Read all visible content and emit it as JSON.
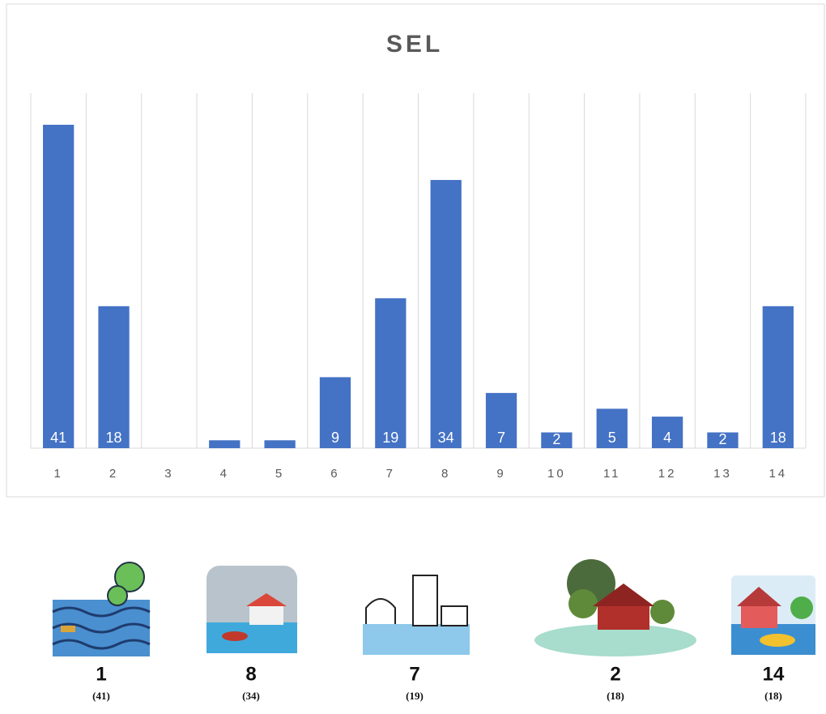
{
  "chart_data": {
    "type": "bar",
    "title": "SEL",
    "categories": [
      "1",
      "2",
      "3",
      "4",
      "5",
      "6",
      "7",
      "8",
      "9",
      "10",
      "11",
      "12",
      "13",
      "14"
    ],
    "values": [
      41,
      18,
      0,
      1,
      1,
      9,
      19,
      34,
      7,
      2,
      5,
      4,
      2,
      18
    ],
    "value_labels": [
      "41",
      "18",
      null,
      null,
      null,
      "9",
      "19",
      "34",
      "7",
      "2",
      "5",
      "4",
      "2",
      "18"
    ],
    "color": "#4472c4",
    "ylim": [
      0,
      45
    ],
    "grid": true
  },
  "icons": [
    {
      "label": "1",
      "count": "(41)"
    },
    {
      "label": "8",
      "count": "(34)"
    },
    {
      "label": "7",
      "count": "(19)"
    },
    {
      "label": "2",
      "count": "(18)"
    },
    {
      "label": "14",
      "count": "(18)"
    }
  ]
}
